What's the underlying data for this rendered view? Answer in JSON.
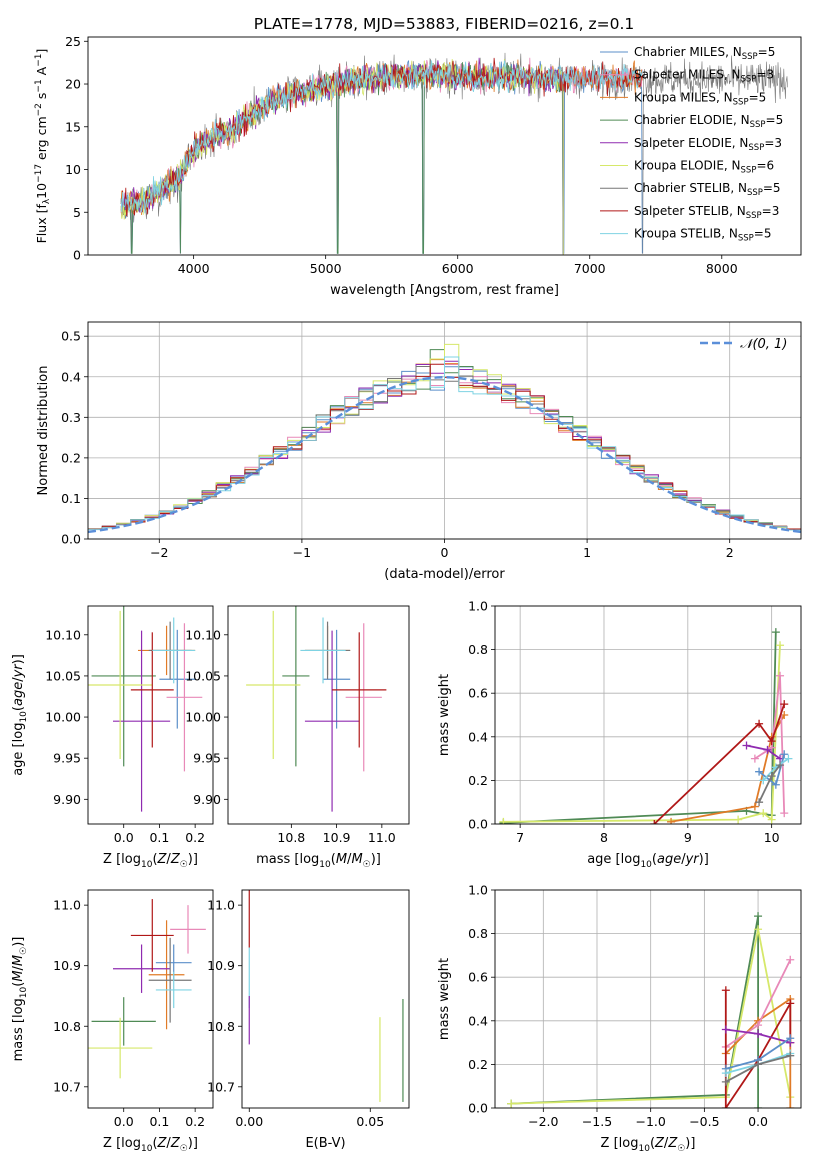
{
  "figure": {
    "title": "PLATE=1778, MJD=53883, FIBERID=0216, z=0.1"
  },
  "colors": {
    "Chabrier MILES": "#5b8fc9",
    "Salpeter MILES": "#e889b8",
    "Kroupa MILES": "#e07b28",
    "Chabrier ELODIE": "#4f8a55",
    "Salpeter ELODIE": "#8f2bb0",
    "Kroupa ELODIE": "#d6e86a",
    "Chabrier STELIB": "#777777",
    "Salpeter STELIB": "#b01818",
    "Kroupa STELIB": "#7fd3e3",
    "gaussian": "#5b8fd9"
  },
  "chart_data": [
    {
      "id": "spectrum",
      "type": "line",
      "xlabel": "wavelength [Angstrom, rest frame]",
      "ylabel": "Flux [f_λ 10^-17 erg cm^-2 s^-1 A^-1]",
      "ylabel_parts": {
        "pre": "Flux [f",
        "sub1": "λ",
        "mid": "10",
        "sup1": "−17",
        "post1": " erg cm",
        "sup2": "−2",
        "post2": " s",
        "sup3": "−1",
        "post3": " A",
        "sup4": "−1",
        "end": "]"
      },
      "xlim": [
        3200,
        8600
      ],
      "ylim": [
        0,
        25.5
      ],
      "xticks": [
        4000,
        5000,
        6000,
        7000,
        8000
      ],
      "yticks": [
        0,
        5,
        10,
        15,
        20,
        25
      ],
      "legend_position": "right",
      "continuum": [
        [
          3450,
          5.8
        ],
        [
          3600,
          6.2
        ],
        [
          3700,
          7.0
        ],
        [
          3800,
          8.2
        ],
        [
          3900,
          9.3
        ],
        [
          4000,
          12.3
        ],
        [
          4100,
          13.3
        ],
        [
          4200,
          14.2
        ],
        [
          4300,
          14.4
        ],
        [
          4400,
          16.0
        ],
        [
          4500,
          17.2
        ],
        [
          4600,
          18.0
        ],
        [
          4700,
          18.6
        ],
        [
          4800,
          19.0
        ],
        [
          4900,
          19.4
        ],
        [
          5000,
          19.8
        ],
        [
          5200,
          20.4
        ],
        [
          5400,
          20.8
        ],
        [
          5600,
          21.0
        ],
        [
          5800,
          21.0
        ],
        [
          6000,
          20.9
        ],
        [
          6200,
          20.8
        ],
        [
          6500,
          20.8
        ],
        [
          6800,
          20.7
        ],
        [
          7000,
          20.6
        ],
        [
          7200,
          20.6
        ],
        [
          7400,
          20.5
        ]
      ],
      "dips": [
        [
          3530,
          0
        ],
        [
          3900,
          0
        ],
        [
          5090,
          0
        ],
        [
          5740,
          0
        ],
        [
          6800,
          0
        ],
        [
          7400,
          0
        ]
      ],
      "series": [
        {
          "name": "Chabrier MILES",
          "label": "Chabrier MILES, N",
          "nssp": "5",
          "end_x": 7400
        },
        {
          "name": "Salpeter MILES",
          "label": "Salpeter MILES, N",
          "nssp": "3",
          "end_x": 7400
        },
        {
          "name": "Kroupa MILES",
          "label": "Kroupa MILES, N",
          "nssp": "5",
          "end_x": 7400
        },
        {
          "name": "Chabrier ELODIE",
          "label": "Chabrier ELODIE, N",
          "nssp": "5",
          "end_x": 6800
        },
        {
          "name": "Salpeter ELODIE",
          "label": "Salpeter ELODIE, N",
          "nssp": "3",
          "end_x": 6800
        },
        {
          "name": "Kroupa ELODIE",
          "label": "Kroupa ELODIE, N",
          "nssp": "6",
          "end_x": 6800
        },
        {
          "name": "Chabrier STELIB",
          "label": "Chabrier STELIB, N",
          "nssp": "5",
          "end_x": 8500
        },
        {
          "name": "Salpeter STELIB",
          "label": "Salpeter STELIB, N",
          "nssp": "3",
          "end_x": 7400
        },
        {
          "name": "Kroupa STELIB",
          "label": "Kroupa STELIB, N",
          "nssp": "5",
          "end_x": 7400
        }
      ],
      "nssp_sub": "SSP"
    },
    {
      "id": "residuals",
      "type": "line",
      "xlabel": "(data-model)/error",
      "ylabel": "Normed distribution",
      "xlim": [
        -2.5,
        2.5
      ],
      "ylim": [
        0,
        0.535
      ],
      "xticks": [
        -2,
        -1,
        0,
        1,
        2
      ],
      "yticks": [
        0.0,
        0.1,
        0.2,
        0.3,
        0.4,
        0.5
      ],
      "grid": true,
      "legend_label": "𝒩(0, 1)",
      "legend_position": "top-right",
      "bin_width": 0.1
    },
    {
      "id": "age_vs_Z",
      "type": "scatter",
      "xlabel": "Z [log10(Z/Z☉)]",
      "ylabel": "age [log10(age/yr)]",
      "xlim": [
        -0.1,
        0.25
      ],
      "ylim": [
        9.87,
        10.135
      ],
      "xticks": [
        0.0,
        0.1,
        0.2
      ],
      "yticks": [
        9.9,
        9.95,
        10.0,
        10.05,
        10.1
      ],
      "points": [
        {
          "name": "Chabrier MILES",
          "x": 0.15,
          "y": 10.046,
          "xerr": 0.05,
          "yerr": 0.06
        },
        {
          "name": "Salpeter MILES",
          "x": 0.17,
          "y": 10.024,
          "xerr": 0.05,
          "yerr": 0.09
        },
        {
          "name": "Kroupa MILES",
          "x": 0.12,
          "y": 10.081,
          "xerr": 0.08,
          "yerr": 0.03
        },
        {
          "name": "Chabrier ELODIE",
          "x": 0.0,
          "y": 10.05,
          "xerr": 0.09,
          "yerr": 0.11
        },
        {
          "name": "Salpeter ELODIE",
          "x": 0.05,
          "y": 9.995,
          "xerr": 0.08,
          "yerr": 0.11
        },
        {
          "name": "Kroupa ELODIE",
          "x": -0.01,
          "y": 10.039,
          "xerr": 0.09,
          "yerr": 0.09
        },
        {
          "name": "Chabrier STELIB",
          "x": 0.13,
          "y": 10.081,
          "xerr": 0.06,
          "yerr": 0.035
        },
        {
          "name": "Salpeter STELIB",
          "x": 0.08,
          "y": 10.033,
          "xerr": 0.06,
          "yerr": 0.07
        },
        {
          "name": "Kroupa STELIB",
          "x": 0.14,
          "y": 10.081,
          "xerr": 0.06,
          "yerr": 0.04
        }
      ]
    },
    {
      "id": "age_vs_mass",
      "type": "scatter",
      "xlabel": "mass [log10(M/M☉)]",
      "xlim": [
        10.66,
        11.06
      ],
      "ylim": [
        9.87,
        10.135
      ],
      "xticks": [
        10.8,
        10.9,
        11.0
      ],
      "yticks": [
        9.9,
        9.95,
        10.0,
        10.05,
        10.1
      ],
      "points": [
        {
          "name": "Chabrier MILES",
          "x": 10.9,
          "y": 10.046,
          "xerr": 0.03,
          "yerr": 0.06
        },
        {
          "name": "Salpeter MILES",
          "x": 10.96,
          "y": 10.024,
          "xerr": 0.04,
          "yerr": 0.09
        },
        {
          "name": "Kroupa MILES",
          "x": 10.88,
          "y": 10.081,
          "xerr": 0.05,
          "yerr": 0.03
        },
        {
          "name": "Chabrier ELODIE",
          "x": 10.81,
          "y": 10.05,
          "xerr": 0.03,
          "yerr": 0.11
        },
        {
          "name": "Salpeter ELODIE",
          "x": 10.89,
          "y": 9.995,
          "xerr": 0.06,
          "yerr": 0.11
        },
        {
          "name": "Kroupa ELODIE",
          "x": 10.76,
          "y": 10.039,
          "xerr": 0.06,
          "yerr": 0.09
        },
        {
          "name": "Chabrier STELIB",
          "x": 10.88,
          "y": 10.081,
          "xerr": 0.05,
          "yerr": 0.035
        },
        {
          "name": "Salpeter STELIB",
          "x": 10.95,
          "y": 10.033,
          "xerr": 0.06,
          "yerr": 0.07
        },
        {
          "name": "Kroupa STELIB",
          "x": 10.87,
          "y": 10.081,
          "xerr": 0.05,
          "yerr": 0.04
        }
      ]
    },
    {
      "id": "weight_vs_age",
      "type": "line",
      "xlabel": "age [log10(age/yr)]",
      "ylabel": "mass weight",
      "xlim": [
        6.7,
        10.35
      ],
      "ylim": [
        0,
        1.0
      ],
      "xticks": [
        7,
        8,
        9,
        10
      ],
      "yticks": [
        0.0,
        0.2,
        0.4,
        0.6,
        0.8,
        1.0
      ],
      "grid": true,
      "series": [
        {
          "name": "Chabrier ELODIE",
          "points": [
            [
              6.8,
              0.005
            ],
            [
              9.7,
              0.06
            ],
            [
              10.0,
              0.04
            ],
            [
              10.05,
              0.88
            ]
          ]
        },
        {
          "name": "Kroupa ELODIE",
          "points": [
            [
              6.8,
              0.01
            ],
            [
              9.6,
              0.02
            ],
            [
              9.9,
              0.05
            ],
            [
              10.0,
              0.02
            ],
            [
              10.1,
              0.82
            ]
          ]
        },
        {
          "name": "Kroupa MILES",
          "points": [
            [
              8.8,
              0.01
            ],
            [
              9.8,
              0.08
            ],
            [
              10.0,
              0.4
            ],
            [
              10.15,
              0.5
            ]
          ]
        },
        {
          "name": "Salpeter MILES",
          "points": [
            [
              9.8,
              0.3
            ],
            [
              10.0,
              0.35
            ],
            [
              10.1,
              0.68
            ],
            [
              10.15,
              0.05
            ]
          ]
        },
        {
          "name": "Salpeter STELIB",
          "points": [
            [
              8.6,
              0.0
            ],
            [
              9.85,
              0.46
            ],
            [
              10.0,
              0.38
            ],
            [
              10.15,
              0.55
            ]
          ]
        },
        {
          "name": "Salpeter ELODIE",
          "points": [
            [
              9.7,
              0.36
            ],
            [
              9.95,
              0.34
            ],
            [
              10.1,
              0.3
            ]
          ]
        },
        {
          "name": "Chabrier MILES",
          "points": [
            [
              9.85,
              0.24
            ],
            [
              10.05,
              0.18
            ],
            [
              10.15,
              0.32
            ]
          ]
        },
        {
          "name": "Kroupa STELIB",
          "points": [
            [
              9.9,
              0.2
            ],
            [
              10.05,
              0.26
            ],
            [
              10.2,
              0.3
            ]
          ]
        },
        {
          "name": "Chabrier STELIB",
          "points": [
            [
              9.85,
              0.1
            ],
            [
              10.0,
              0.22
            ],
            [
              10.1,
              0.27
            ]
          ]
        }
      ]
    },
    {
      "id": "mass_vs_Z",
      "type": "scatter",
      "xlabel": "Z [log10(Z/Z☉)]",
      "ylabel": "mass [log10(M/M☉)]",
      "xlim": [
        -0.1,
        0.25
      ],
      "ylim": [
        10.665,
        11.025
      ],
      "xticks": [
        0.0,
        0.1,
        0.2
      ],
      "yticks": [
        10.7,
        10.8,
        10.9,
        11.0
      ],
      "points": [
        {
          "name": "Chabrier MILES",
          "x": 0.14,
          "y": 10.905,
          "xerr": 0.05,
          "yerr": 0.03
        },
        {
          "name": "Salpeter MILES",
          "x": 0.18,
          "y": 10.96,
          "xerr": 0.05,
          "yerr": 0.04
        },
        {
          "name": "Kroupa MILES",
          "x": 0.12,
          "y": 10.885,
          "xerr": 0.05,
          "yerr": 0.09
        },
        {
          "name": "Chabrier ELODIE",
          "x": 0.0,
          "y": 10.808,
          "xerr": 0.09,
          "yerr": 0.04
        },
        {
          "name": "Salpeter ELODIE",
          "x": 0.05,
          "y": 10.895,
          "xerr": 0.08,
          "yerr": 0.04
        },
        {
          "name": "Kroupa ELODIE",
          "x": -0.01,
          "y": 10.764,
          "xerr": 0.09,
          "yerr": 0.05
        },
        {
          "name": "Chabrier STELIB",
          "x": 0.13,
          "y": 10.876,
          "xerr": 0.06,
          "yerr": 0.07
        },
        {
          "name": "Salpeter STELIB",
          "x": 0.08,
          "y": 10.95,
          "xerr": 0.06,
          "yerr": 0.06
        },
        {
          "name": "Kroupa STELIB",
          "x": 0.14,
          "y": 10.86,
          "xerr": 0.05,
          "yerr": 0.03
        }
      ]
    },
    {
      "id": "mass_vs_EBV",
      "type": "scatter",
      "xlabel": "E(B-V)",
      "xlim": [
        -0.003,
        0.066
      ],
      "ylim": [
        10.665,
        11.025
      ],
      "xticks": [
        0.0,
        0.05
      ],
      "yticks": [
        10.7,
        10.8,
        10.9,
        11.0
      ],
      "points": [
        {
          "name": "Salpeter STELIB",
          "x": 0.0,
          "y": 10.99,
          "xerr": 0.0,
          "yerr": 0.06
        },
        {
          "name": "Kroupa STELIB",
          "x": 0.0,
          "y": 10.88,
          "xerr": 0.0,
          "yerr": 0.05
        },
        {
          "name": "Salpeter ELODIE",
          "x": 0.0,
          "y": 10.81,
          "xerr": 0.0,
          "yerr": 0.04
        },
        {
          "name": "Kroupa ELODIE",
          "x": 0.054,
          "y": 10.745,
          "xerr": 0.0,
          "yerr": 0.07
        },
        {
          "name": "Chabrier ELODIE",
          "x": 0.0635,
          "y": 10.76,
          "xerr": 0.0,
          "yerr": 0.085
        }
      ]
    },
    {
      "id": "weight_vs_Z",
      "type": "line",
      "xlabel": "Z [log10(Z/Z☉)]",
      "ylabel": "mass weight",
      "xlim": [
        -2.45,
        0.4
      ],
      "ylim": [
        0,
        1.0
      ],
      "xticks": [
        -2.0,
        -1.5,
        -1.0,
        -0.5,
        0.0
      ],
      "yticks": [
        0.0,
        0.2,
        0.4,
        0.6,
        0.8,
        1.0
      ],
      "grid": true,
      "series": [
        {
          "name": "Chabrier ELODIE",
          "points": [
            [
              -2.3,
              0.02
            ],
            [
              -0.3,
              0.06
            ],
            [
              0.0,
              0.88
            ],
            [
              0.0,
              0.0
            ]
          ]
        },
        {
          "name": "Kroupa ELODIE",
          "points": [
            [
              -2.3,
              0.02
            ],
            [
              -0.3,
              0.05
            ],
            [
              0.0,
              0.82
            ],
            [
              0.3,
              0.05
            ]
          ]
        },
        {
          "name": "Kroupa MILES",
          "points": [
            [
              -0.3,
              0.25
            ],
            [
              0.0,
              0.4
            ],
            [
              0.3,
              0.5
            ],
            [
              0.3,
              0.0
            ]
          ]
        },
        {
          "name": "Salpeter MILES",
          "points": [
            [
              -0.3,
              0.28
            ],
            [
              0.0,
              0.38
            ],
            [
              0.3,
              0.68
            ]
          ]
        },
        {
          "name": "Salpeter STELIB",
          "points": [
            [
              -0.3,
              0.54
            ],
            [
              -0.3,
              0.0
            ],
            [
              0.0,
              0.22
            ],
            [
              0.3,
              0.48
            ],
            [
              0.3,
              0.3
            ]
          ]
        },
        {
          "name": "Salpeter ELODIE",
          "points": [
            [
              -0.3,
              0.36
            ],
            [
              0.0,
              0.34
            ],
            [
              0.3,
              0.3
            ]
          ]
        },
        {
          "name": "Chabrier MILES",
          "points": [
            [
              -0.3,
              0.18
            ],
            [
              0.0,
              0.22
            ],
            [
              0.3,
              0.32
            ]
          ]
        },
        {
          "name": "Kroupa STELIB",
          "points": [
            [
              -0.3,
              0.16
            ],
            [
              0.0,
              0.2
            ],
            [
              0.3,
              0.25
            ]
          ]
        },
        {
          "name": "Chabrier STELIB",
          "points": [
            [
              -0.3,
              0.12
            ],
            [
              0.0,
              0.2
            ],
            [
              0.3,
              0.24
            ]
          ]
        }
      ]
    }
  ]
}
